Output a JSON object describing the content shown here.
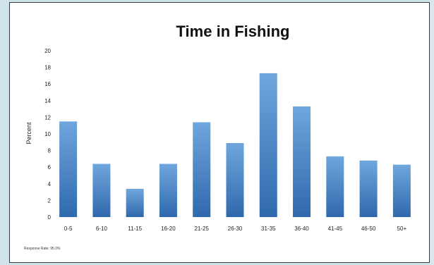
{
  "chart_data": {
    "type": "bar",
    "title": "Time in Fishing",
    "xlabel": "",
    "ylabel": "Percent",
    "ylim": [
      0,
      20
    ],
    "yticks": [
      0,
      2,
      4,
      6,
      8,
      10,
      12,
      14,
      16,
      18,
      20
    ],
    "grid": false,
    "legend": "none",
    "categories": [
      "0-5",
      "6-10",
      "11-15",
      "16-20",
      "21-25",
      "26-30",
      "31-35",
      "36-40",
      "41-45",
      "46-50",
      "50+"
    ],
    "values": [
      11.5,
      6.4,
      3.4,
      6.4,
      11.4,
      8.9,
      17.3,
      13.3,
      7.3,
      6.8,
      6.3
    ],
    "bar_color_top": "#6fa6dd",
    "bar_color_bottom": "#2f69ad",
    "footnote": "Response Rate: 95.0%"
  }
}
